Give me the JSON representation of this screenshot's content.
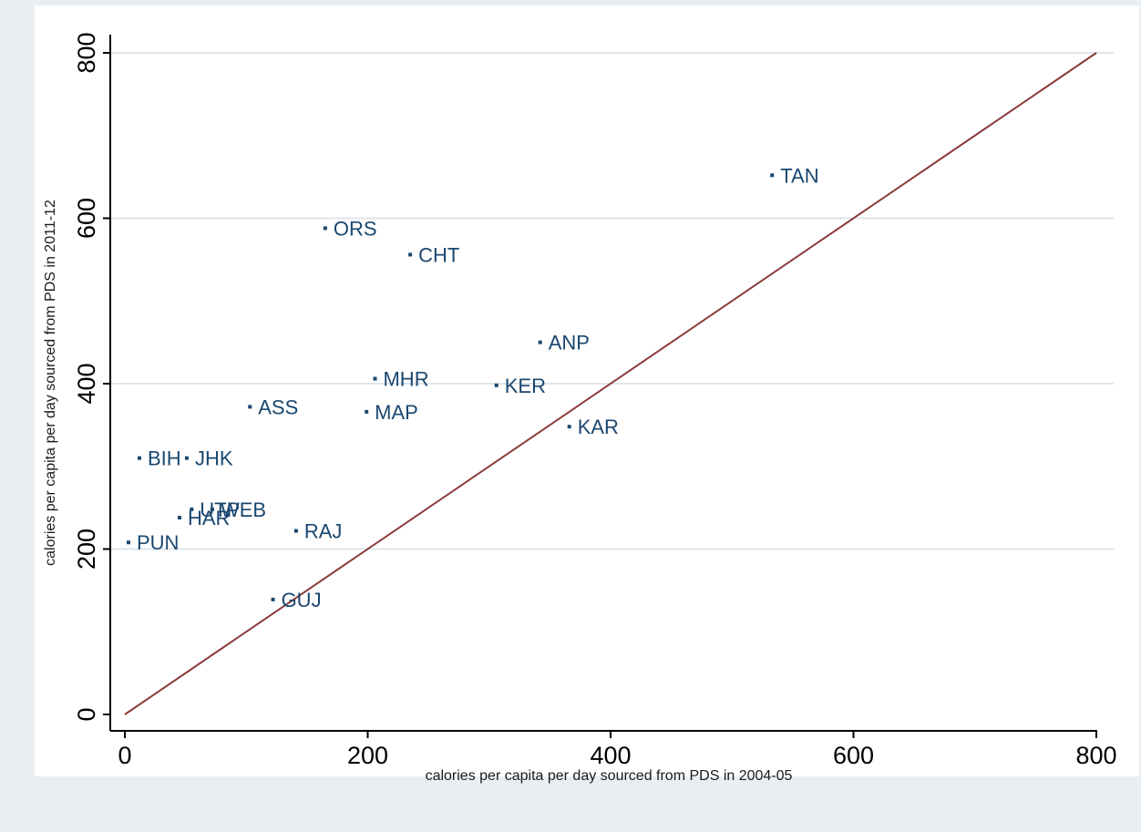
{
  "chart_data": {
    "type": "scatter",
    "xlabel": "calories per capita per day sourced from PDS in 2004-05",
    "ylabel": "calories per capita per day sourced from PDS in 2011-12",
    "xlim": [
      0,
      800
    ],
    "ylim": [
      0,
      800
    ],
    "x_ticks": [
      0,
      200,
      400,
      600,
      800
    ],
    "y_ticks": [
      0,
      200,
      400,
      600,
      800
    ],
    "grid": "horizontal",
    "legend": "none",
    "reference_line": {
      "from": [
        0,
        0
      ],
      "to": [
        800,
        800
      ],
      "color": "#8b3a3a"
    },
    "points": [
      {
        "label": "TAN",
        "x": 533,
        "y": 652
      },
      {
        "label": "ORS",
        "x": 165,
        "y": 588
      },
      {
        "label": "CHT",
        "x": 235,
        "y": 556
      },
      {
        "label": "ANP",
        "x": 342,
        "y": 450
      },
      {
        "label": "MHR",
        "x": 206,
        "y": 406
      },
      {
        "label": "KER",
        "x": 306,
        "y": 398
      },
      {
        "label": "ASS",
        "x": 103,
        "y": 372
      },
      {
        "label": "MAP",
        "x": 199,
        "y": 366
      },
      {
        "label": "KAR",
        "x": 366,
        "y": 348
      },
      {
        "label": "BIH",
        "x": 12,
        "y": 310
      },
      {
        "label": "JHK",
        "x": 51,
        "y": 310
      },
      {
        "label": "UTP",
        "x": 55,
        "y": 248
      },
      {
        "label": "WEB",
        "x": 72,
        "y": 248
      },
      {
        "label": "HAR",
        "x": 45,
        "y": 238
      },
      {
        "label": "RAJ",
        "x": 141,
        "y": 222
      },
      {
        "label": "PUN",
        "x": 3,
        "y": 208
      },
      {
        "label": "GUJ",
        "x": 122,
        "y": 139
      }
    ],
    "colors": {
      "background": "#e8eef2",
      "plot_background": "#ffffff",
      "gridline": "#dde6ec",
      "marker": "#1a476f",
      "label": "#1a476f",
      "reference_line": "#8b3a3a",
      "axis": "#000000"
    }
  }
}
